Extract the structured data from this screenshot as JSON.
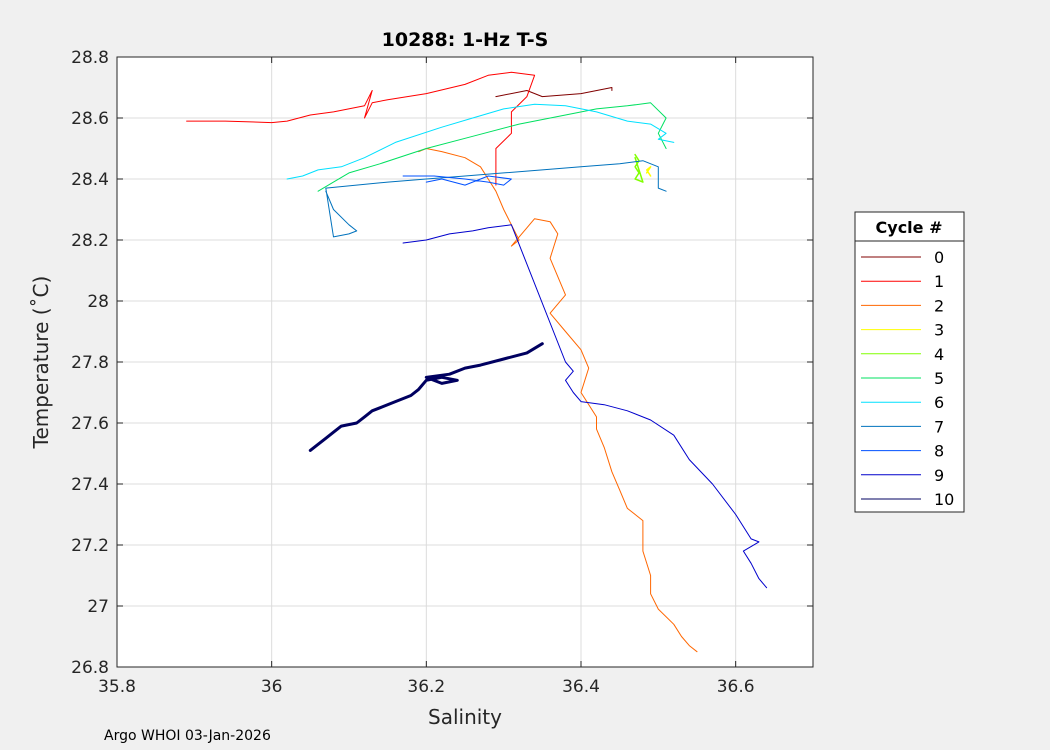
{
  "footer": "Argo WHOI 03-Jan-2026",
  "chart_data": {
    "type": "line",
    "title": "10288: 1-Hz T-S",
    "xlabel": "Salinity",
    "ylabel": "Temperature (˚C)",
    "xlim": [
      35.8,
      36.7
    ],
    "ylim": [
      26.8,
      28.8
    ],
    "xticks": [
      "35.8",
      "36",
      "36.2",
      "36.4",
      "36.6"
    ],
    "yticks": [
      "26.8",
      "27",
      "27.2",
      "27.4",
      "27.6",
      "27.8",
      "28",
      "28.2",
      "28.4",
      "28.6",
      "28.8"
    ],
    "grid": true,
    "legend": {
      "title": "Cycle #",
      "position": "right"
    },
    "series": [
      {
        "name": "0",
        "color": "#800000",
        "width": 1,
        "x": [
          36.29,
          36.33,
          36.35,
          36.4,
          36.44,
          36.44
        ],
        "y": [
          28.67,
          28.69,
          28.67,
          28.68,
          28.7,
          28.69
        ]
      },
      {
        "name": "1",
        "color": "#ff0000",
        "width": 1,
        "x": [
          35.89,
          35.94,
          36.0,
          36.02,
          36.05,
          36.08,
          36.12,
          36.13,
          36.12,
          36.13,
          36.15,
          36.2,
          36.25,
          36.28,
          36.31,
          36.34,
          36.33,
          36.31,
          36.31,
          36.29,
          36.29
        ],
        "y": [
          28.59,
          28.59,
          28.585,
          28.59,
          28.61,
          28.62,
          28.64,
          28.69,
          28.6,
          28.65,
          28.66,
          28.68,
          28.71,
          28.74,
          28.75,
          28.74,
          28.67,
          28.62,
          28.55,
          28.5,
          28.38
        ]
      },
      {
        "name": "2",
        "color": "#ff6600",
        "width": 1,
        "x": [
          36.19,
          36.2,
          36.22,
          36.25,
          36.27,
          36.28,
          36.29,
          36.3,
          36.31,
          36.32,
          36.31,
          36.33,
          36.34,
          36.36,
          36.37,
          36.36,
          36.38,
          36.36,
          36.38,
          36.4,
          36.41,
          36.4,
          36.42,
          36.42,
          36.43,
          36.44,
          36.45,
          36.46,
          36.48,
          36.48,
          36.49,
          36.49,
          36.5,
          36.52,
          36.53,
          36.54,
          36.55
        ],
        "y": [
          28.49,
          28.5,
          28.49,
          28.47,
          28.44,
          28.4,
          28.36,
          28.3,
          28.25,
          28.2,
          28.18,
          28.24,
          28.27,
          28.26,
          28.22,
          28.14,
          28.02,
          27.96,
          27.9,
          27.84,
          27.78,
          27.7,
          27.62,
          27.58,
          27.52,
          27.44,
          27.38,
          27.32,
          27.28,
          27.18,
          27.1,
          27.04,
          26.99,
          26.94,
          26.9,
          26.87,
          26.85
        ]
      },
      {
        "name": "3",
        "color": "#ffff00",
        "width": 1.5,
        "x": [
          36.485,
          36.49,
          36.485,
          36.49
        ],
        "y": [
          28.42,
          28.44,
          28.43,
          28.41
        ]
      },
      {
        "name": "4",
        "color": "#80ff00",
        "width": 1.5,
        "x": [
          36.47,
          36.475,
          36.47,
          36.475,
          36.47,
          36.48,
          36.47
        ],
        "y": [
          28.48,
          28.46,
          28.44,
          28.42,
          28.4,
          28.39,
          28.47
        ]
      },
      {
        "name": "5",
        "color": "#00e060",
        "width": 1,
        "x": [
          36.06,
          36.08,
          36.1,
          36.14,
          36.2,
          36.26,
          36.32,
          36.38,
          36.42,
          36.46,
          36.49,
          36.51,
          36.5,
          36.51
        ],
        "y": [
          28.36,
          28.39,
          28.42,
          28.45,
          28.5,
          28.54,
          28.58,
          28.61,
          28.63,
          28.64,
          28.65,
          28.6,
          28.55,
          28.5
        ]
      },
      {
        "name": "6",
        "color": "#00e0ff",
        "width": 1,
        "x": [
          36.02,
          36.04,
          36.06,
          36.09,
          36.12,
          36.16,
          36.22,
          36.26,
          36.3,
          36.34,
          36.38,
          36.42,
          36.46,
          36.49,
          36.51,
          36.5,
          36.52
        ],
        "y": [
          28.4,
          28.41,
          28.43,
          28.44,
          28.47,
          28.52,
          28.57,
          28.6,
          28.63,
          28.645,
          28.64,
          28.62,
          28.59,
          28.58,
          28.55,
          28.53,
          28.52
        ]
      },
      {
        "name": "7",
        "color": "#0072bd",
        "width": 1,
        "x": [
          36.07,
          36.08,
          36.1,
          36.11,
          36.1,
          36.08,
          36.07,
          36.15,
          36.2,
          36.25,
          36.3,
          36.35,
          36.4,
          36.45,
          36.48,
          36.5,
          36.5,
          36.51
        ],
        "y": [
          28.36,
          28.3,
          28.25,
          28.23,
          28.22,
          28.21,
          28.37,
          28.39,
          28.4,
          28.41,
          28.42,
          28.43,
          28.44,
          28.45,
          28.46,
          28.44,
          28.37,
          28.36
        ]
      },
      {
        "name": "8",
        "color": "#0050ff",
        "width": 1,
        "x": [
          36.17,
          36.21,
          36.25,
          36.28,
          36.3,
          36.31,
          36.28,
          36.25,
          36.22,
          36.2
        ],
        "y": [
          28.41,
          28.41,
          28.4,
          28.39,
          28.38,
          28.4,
          28.41,
          28.38,
          28.4,
          28.39
        ]
      },
      {
        "name": "9",
        "color": "#0000cc",
        "width": 1,
        "x": [
          36.17,
          36.2,
          36.23,
          36.26,
          36.28,
          36.31,
          36.38,
          36.39,
          36.38,
          36.39,
          36.4,
          36.43,
          36.46,
          36.49,
          36.52,
          36.54,
          36.57,
          36.6,
          36.62,
          36.63,
          36.61,
          36.62,
          36.63,
          36.64
        ],
        "y": [
          28.19,
          28.2,
          28.22,
          28.23,
          28.24,
          28.25,
          27.8,
          27.77,
          27.74,
          27.7,
          27.67,
          27.66,
          27.64,
          27.61,
          27.56,
          27.48,
          27.4,
          27.3,
          27.22,
          27.21,
          27.18,
          27.14,
          27.09,
          27.06
        ]
      },
      {
        "name": "10",
        "color": "#000060",
        "width": 3,
        "x": [
          36.05,
          36.06,
          36.07,
          36.08,
          36.09,
          36.11,
          36.12,
          36.13,
          36.14,
          36.16,
          36.18,
          36.19,
          36.2,
          36.22,
          36.24,
          36.22,
          36.2,
          36.23,
          36.25,
          36.27,
          36.3,
          36.33,
          36.35
        ],
        "y": [
          27.51,
          27.53,
          27.55,
          27.57,
          27.59,
          27.6,
          27.62,
          27.64,
          27.65,
          27.67,
          27.69,
          27.71,
          27.74,
          27.75,
          27.74,
          27.73,
          27.75,
          27.76,
          27.78,
          27.79,
          27.81,
          27.83,
          27.86
        ]
      }
    ]
  }
}
